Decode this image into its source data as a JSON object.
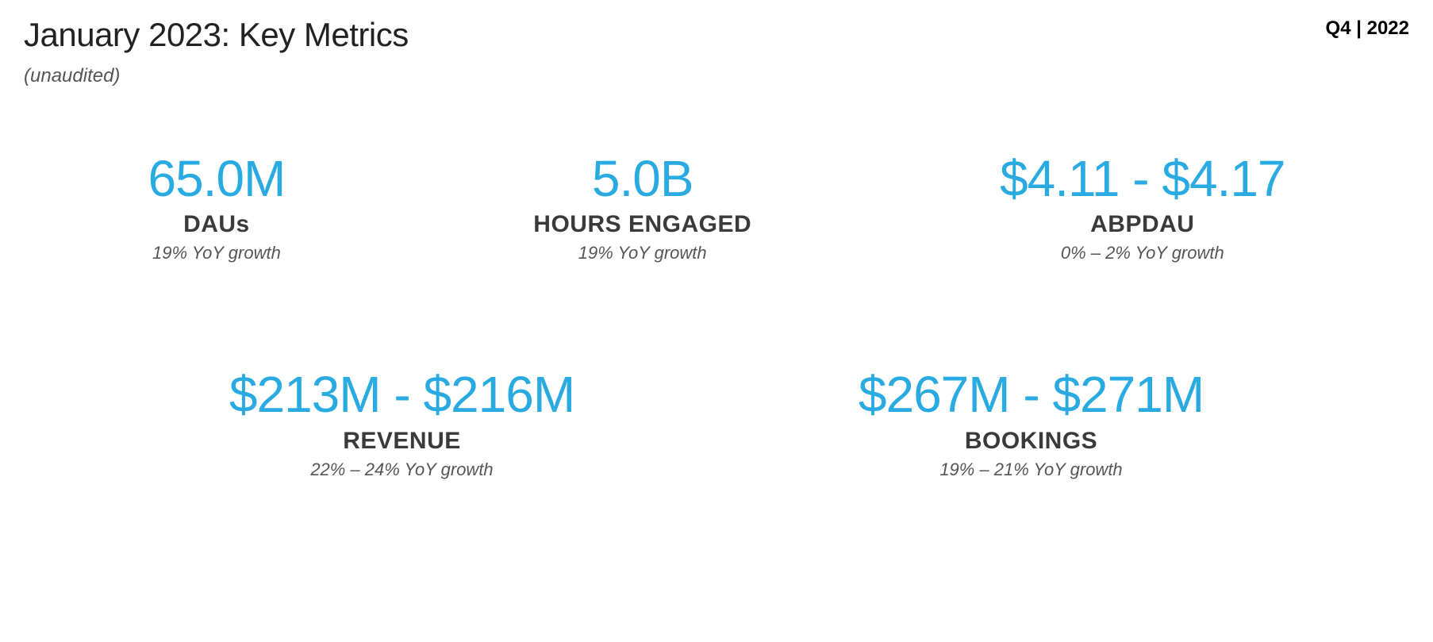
{
  "header": {
    "title": "January 2023: Key Metrics",
    "subtitle": "(unaudited)",
    "period": "Q4 | 2022"
  },
  "colors": {
    "accent": "#29abe2",
    "title_text": "#222222",
    "label_text": "#3a3a3a",
    "muted_text": "#555555",
    "background": "#ffffff"
  },
  "typography": {
    "title_fontsize": 42,
    "subtitle_fontsize": 24,
    "period_fontsize": 24,
    "metric_value_fontsize": 64,
    "metric_label_fontsize": 30,
    "metric_growth_fontsize": 22
  },
  "metrics": {
    "row1": [
      {
        "id": "daus",
        "value": "65.0M",
        "label": "DAUs",
        "growth": "19% YoY growth"
      },
      {
        "id": "hours",
        "value": "5.0B",
        "label": "HOURS ENGAGED",
        "growth": "19% YoY growth"
      },
      {
        "id": "abpdau",
        "value": "$4.11 - $4.17",
        "label": "ABPDAU",
        "growth": "0% – 2% YoY growth"
      }
    ],
    "row2": [
      {
        "id": "revenue",
        "value": "$213M - $216M",
        "label": "REVENUE",
        "growth": "22% – 24% YoY growth"
      },
      {
        "id": "bookings",
        "value": "$267M - $271M",
        "label": "BOOKINGS",
        "growth": "19% – 21% YoY growth"
      }
    ]
  }
}
